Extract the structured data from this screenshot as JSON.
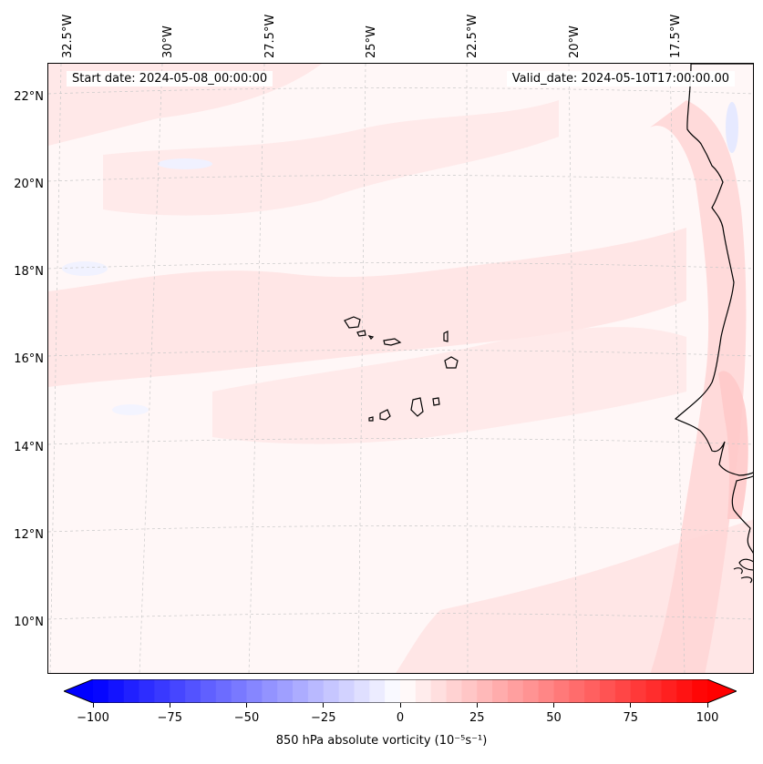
{
  "header": {
    "start_date": "Start date: 2024-05-08_00:00:00",
    "valid_date": "Valid_date: 2024-05-10T17:00:00.00"
  },
  "axes": {
    "longitude_labels": [
      "32.5°W",
      "30°W",
      "27.5°W",
      "25°W",
      "22.5°W",
      "20°W",
      "17.5°W"
    ],
    "latitude_labels": [
      "22°N",
      "20°N",
      "18°N",
      "16°N",
      "14°N",
      "12°N",
      "10°N"
    ],
    "longitude_range": [
      -32.8,
      -15.5
    ],
    "latitude_range": [
      8.9,
      22.8
    ]
  },
  "colorbar": {
    "label": "850 hPa absolute vorticity (10⁻⁵s⁻¹)",
    "min": -100,
    "max": 100,
    "tick_labels": [
      "−100",
      "−75",
      "−50",
      "−25",
      "0",
      "25",
      "50",
      "75",
      "100"
    ],
    "low_color": "#0000ff",
    "mid_color": "#ffffff",
    "high_color": "#ff0000",
    "extend": "both"
  },
  "colors": {
    "background_field": "#fff7f7",
    "positive_band": "#ffe3e3",
    "strong_positive": "#ffcfcf",
    "negative_patch": "#eef0ff",
    "coastline": "#000000"
  }
}
